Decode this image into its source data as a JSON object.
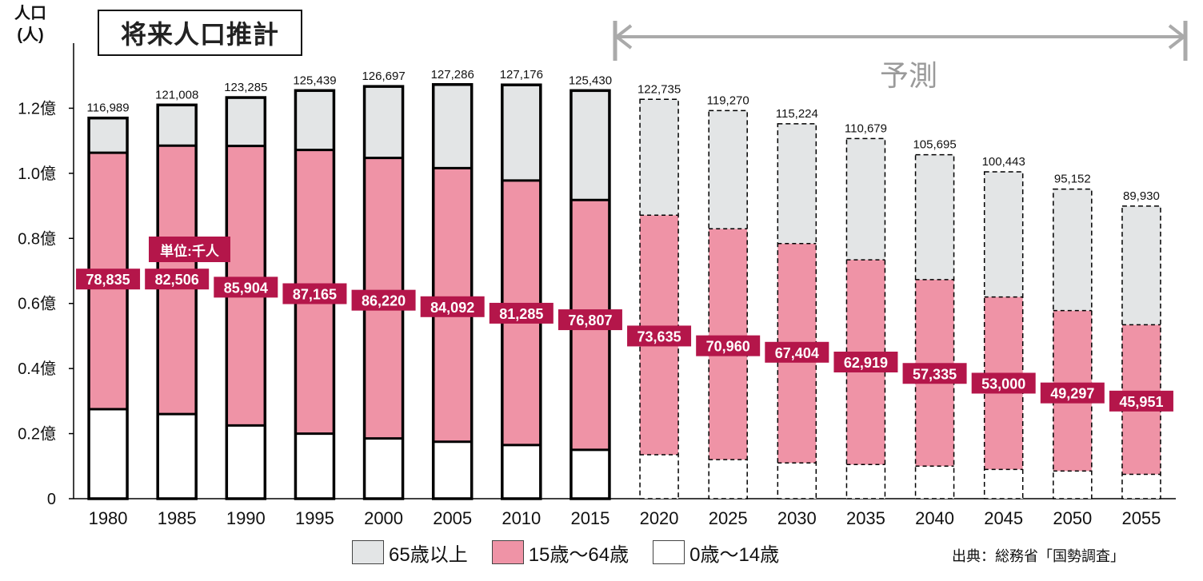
{
  "title": "将来人口推計",
  "ylabel_line1": "人口",
  "ylabel_line2": "(人)",
  "unit_note": "単位:千人",
  "forecast_label": "予測",
  "source": "出典：総務省「国勢調査」",
  "colors": {
    "elderly": "#e3e5e6",
    "working": "#ef93a6",
    "young": "#ffffff",
    "label_bg": "#b4164a",
    "arrow": "#aaaaaa"
  },
  "legend": [
    {
      "label": "65歳以上",
      "color": "#e3e5e6"
    },
    {
      "label": "15歳～64歳",
      "color": "#ef93a6"
    },
    {
      "label": "0歳～14歳",
      "color": "#ffffff"
    }
  ],
  "chart_data": {
    "type": "bar",
    "stacked": true,
    "categories": [
      "1980",
      "1985",
      "1990",
      "1995",
      "2000",
      "2005",
      "2010",
      "2015",
      "2020",
      "2025",
      "2030",
      "2035",
      "2040",
      "2045",
      "2050",
      "2055"
    ],
    "projected_from": "2020",
    "ylim": [
      0,
      140000
    ],
    "yticks": [
      {
        "value": 0,
        "label": "0"
      },
      {
        "value": 20000,
        "label": "0.2億"
      },
      {
        "value": 40000,
        "label": "0.4億"
      },
      {
        "value": 60000,
        "label": "0.6億"
      },
      {
        "value": 80000,
        "label": "0.8億"
      },
      {
        "value": 100000,
        "label": "1.0億"
      },
      {
        "value": 120000,
        "label": "1.2億"
      }
    ],
    "totals": [
      116989,
      121008,
      123285,
      125439,
      126697,
      127286,
      127176,
      125430,
      122735,
      119270,
      115224,
      110679,
      105695,
      100443,
      95152,
      89930
    ],
    "totals_labels": [
      "116,989",
      "121,008",
      "123,285",
      "125,439",
      "126,697",
      "127,286",
      "127,176",
      "125,430",
      "122,735",
      "119,270",
      "115,224",
      "110,679",
      "105,695",
      "100,443",
      "95,152",
      "89,930"
    ],
    "series": [
      {
        "name": "0歳～14歳",
        "values": [
          27500,
          26000,
          22500,
          20000,
          18500,
          17500,
          16500,
          15000,
          13500,
          12000,
          11000,
          10500,
          10000,
          9000,
          8500,
          7500
        ]
      },
      {
        "name": "15歳～64歳",
        "values": [
          78835,
          82506,
          85904,
          87165,
          86220,
          84092,
          81285,
          76807,
          73635,
          70960,
          67404,
          62919,
          57335,
          53000,
          49297,
          45951
        ]
      },
      {
        "name": "65歳以上",
        "values": [
          10654,
          12502,
          14881,
          18274,
          21977,
          25694,
          29391,
          33623,
          35600,
          36310,
          36820,
          37260,
          38360,
          38443,
          37355,
          36479
        ]
      }
    ],
    "working_labels": [
      "78,835",
      "82,506",
      "85,904",
      "87,165",
      "86,220",
      "84,092",
      "81,285",
      "76,807",
      "73,635",
      "70,960",
      "67,404",
      "62,919",
      "57,335",
      "53,000",
      "49,297",
      "45,951"
    ],
    "working_label_values": [
      67500,
      67500,
      65000,
      63000,
      61000,
      59000,
      57000,
      55000,
      50000,
      47000,
      45000,
      42000,
      38500,
      35500,
      32500,
      30000
    ]
  }
}
